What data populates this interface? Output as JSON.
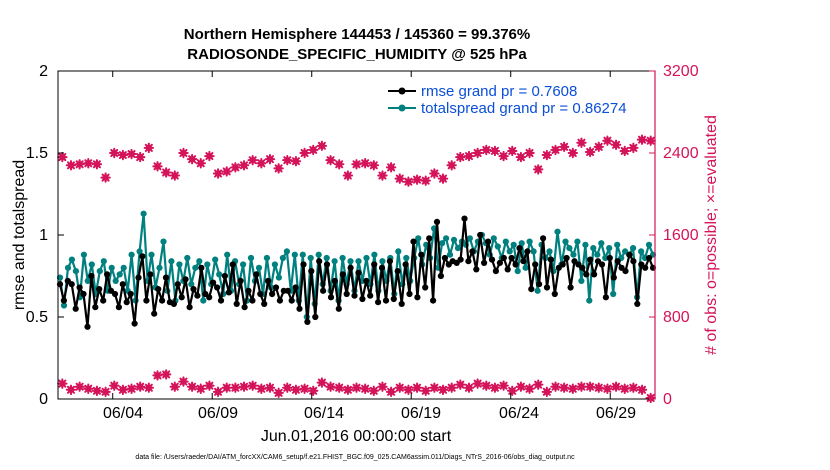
{
  "chart_data": {
    "type": "line",
    "title_line1": "Northern Hemisphere 144453 / 145360 = 99.376%",
    "title_line2": "RADIOSONDE_SPECIFIC_HUMIDITY @ 525 hPa",
    "xlabel": "Jun.01,2016 00:00:00 start",
    "ylabel_left": "rmse and totalspread",
    "ylabel_right": "# of obs: o=possible; ×=evaluated",
    "footer": "data file: /Users/raeder/DAI/ATM_forcXX/CAM6_setup/f.e21.FHIST_BGC.f09_025.CAM6assim.011/Diags_NTrS_2016-06/obs_diag_output.nc",
    "x_range": [
      0.75,
      30.75
    ],
    "ylim_left": [
      0,
      2
    ],
    "ylim_right": [
      0,
      3200
    ],
    "x_ticks": [
      {
        "x": 3.5,
        "label": "06/04"
      },
      {
        "x": 8.5,
        "label": "06/09"
      },
      {
        "x": 13.5,
        "label": "06/14"
      },
      {
        "x": 18.5,
        "label": "06/19"
      },
      {
        "x": 23.5,
        "label": "06/24"
      },
      {
        "x": 28.5,
        "label": "06/29"
      }
    ],
    "y_ticks_left": [
      "0",
      "0.5",
      "1",
      "1.5",
      "2"
    ],
    "y_ticks_right": [
      "0",
      "800",
      "1600",
      "2400",
      "3200"
    ],
    "colors": {
      "rmse": "#000000",
      "spread": "#00807f",
      "obs": "#d4145a",
      "legend_text": "#0b4fd6",
      "axis": "#000000"
    },
    "series": [
      {
        "name": "rmse grand pr = 0.7608",
        "axis": "left",
        "color": "#000000",
        "values": [
          0.7,
          0.6,
          0.72,
          0.7,
          0.55,
          0.68,
          0.64,
          0.44,
          0.75,
          0.56,
          0.67,
          0.6,
          0.76,
          0.66,
          0.64,
          0.56,
          0.7,
          0.59,
          0.64,
          0.46,
          0.74,
          0.87,
          0.6,
          0.76,
          0.52,
          0.67,
          0.6,
          0.74,
          0.59,
          0.58,
          0.7,
          0.62,
          0.73,
          0.56,
          0.67,
          0.63,
          0.8,
          0.64,
          0.62,
          0.71,
          0.68,
          0.6,
          0.75,
          0.65,
          0.82,
          0.58,
          0.72,
          0.56,
          0.66,
          0.6,
          0.76,
          0.64,
          0.58,
          0.72,
          0.64,
          0.68,
          0.6,
          0.66,
          0.66,
          0.6,
          0.68,
          0.55,
          0.82,
          0.47,
          0.78,
          0.5,
          0.84,
          0.66,
          0.82,
          0.62,
          0.72,
          0.55,
          0.76,
          0.64,
          0.8,
          0.63,
          0.77,
          0.61,
          0.72,
          0.63,
          0.82,
          0.59,
          0.8,
          0.6,
          0.84,
          0.61,
          0.78,
          0.58,
          0.82,
          0.64,
          0.96,
          0.62,
          0.88,
          0.68,
          0.98,
          0.6,
          1.08,
          0.75,
          0.86,
          0.82,
          0.84,
          0.83,
          0.85,
          1.1,
          0.84,
          0.9,
          0.79,
          1.0,
          0.83,
          0.96,
          0.85,
          0.78,
          0.83,
          0.86,
          0.79,
          0.86,
          0.82,
          0.92,
          0.84,
          0.9,
          0.67,
          0.82,
          0.7,
          0.98,
          0.68,
          0.85,
          0.64,
          0.8,
          0.82,
          0.86,
          0.68,
          0.84,
          0.82,
          0.8,
          0.76,
          0.85,
          0.76,
          0.84,
          0.82,
          0.62,
          0.86,
          0.74,
          0.84,
          0.8,
          0.78,
          0.88,
          0.84,
          0.58,
          0.82,
          0.8,
          0.86,
          0.8
        ]
      },
      {
        "name": "totalspread grand pr = 0.86274",
        "axis": "left",
        "color": "#00807f",
        "values": [
          0.74,
          0.57,
          0.8,
          0.85,
          0.78,
          0.62,
          0.88,
          0.72,
          0.82,
          0.64,
          0.78,
          0.84,
          0.66,
          0.8,
          0.72,
          0.76,
          0.8,
          0.66,
          0.88,
          0.6,
          0.9,
          1.13,
          0.72,
          0.88,
          0.68,
          0.8,
          0.96,
          0.66,
          0.84,
          0.6,
          0.82,
          0.72,
          0.86,
          0.7,
          0.8,
          0.84,
          0.6,
          0.82,
          0.7,
          0.85,
          0.76,
          0.64,
          0.88,
          0.66,
          0.84,
          0.7,
          0.82,
          0.6,
          0.86,
          0.72,
          0.8,
          0.64,
          0.86,
          0.68,
          0.82,
          0.74,
          0.86,
          0.9,
          0.66,
          0.88,
          0.6,
          0.88,
          0.5,
          0.86,
          0.58,
          0.88,
          0.7,
          0.86,
          0.66,
          0.84,
          0.6,
          0.86,
          0.7,
          0.84,
          0.66,
          0.84,
          0.72,
          0.86,
          0.7,
          0.88,
          0.66,
          0.84,
          0.72,
          0.86,
          0.64,
          0.9,
          0.7,
          0.86,
          0.72,
          0.86,
          0.98,
          0.82,
          0.94,
          0.86,
          1.04,
          0.8,
          0.95,
          0.98,
          0.88,
          0.97,
          0.92,
          0.96,
          0.94,
          0.98,
          0.9,
          0.96,
          1.0,
          0.95,
          0.88,
          0.98,
          0.93,
          0.86,
          0.96,
          0.9,
          0.94,
          0.78,
          0.95,
          0.8,
          0.96,
          0.9,
          0.66,
          0.94,
          0.86,
          0.9,
          0.78,
          1.02,
          0.82,
          0.96,
          0.92,
          0.88,
          0.96,
          0.72,
          0.94,
          0.6,
          0.92,
          0.88,
          0.95,
          0.86,
          0.92,
          0.64,
          0.94,
          0.86,
          0.9,
          0.88,
          0.92,
          0.62,
          0.9,
          0.86,
          0.94,
          0.88
        ]
      },
      {
        "name": "obs possible",
        "axis": "right",
        "color": "#d4145a",
        "values": [
          2360,
          2280,
          2290,
          2300,
          2290,
          2160,
          2400,
          2380,
          2390,
          2360,
          2450,
          2270,
          2210,
          2180,
          2400,
          2340,
          2300,
          2370,
          2200,
          2220,
          2260,
          2280,
          2330,
          2300,
          2340,
          2250,
          2330,
          2320,
          2400,
          2430,
          2470,
          2330,
          2290,
          2180,
          2290,
          2300,
          2280,
          2180,
          2260,
          2150,
          2120,
          2140,
          2130,
          2200,
          2150,
          2280,
          2360,
          2370,
          2400,
          2430,
          2420,
          2370,
          2420,
          2360,
          2400,
          2240,
          2380,
          2430,
          2460,
          2400,
          2500,
          2410,
          2460,
          2520,
          2480,
          2420,
          2450,
          2530,
          2520
        ]
      },
      {
        "name": "obs evaluated",
        "axis": "right",
        "color": "#d4145a",
        "values": [
          150,
          90,
          120,
          100,
          80,
          70,
          130,
          90,
          100,
          120,
          110,
          230,
          240,
          120,
          170,
          120,
          100,
          130,
          70,
          110,
          110,
          120,
          130,
          100,
          110,
          60,
          110,
          90,
          100,
          80,
          160,
          120,
          110,
          90,
          110,
          100,
          80,
          120,
          70,
          110,
          90,
          110,
          80,
          110,
          90,
          110,
          140,
          110,
          150,
          130,
          110,
          130,
          80,
          120,
          100,
          140,
          70,
          120,
          110,
          100,
          120,
          120,
          110,
          100,
          120,
          100,
          110,
          90,
          10
        ]
      }
    ]
  }
}
